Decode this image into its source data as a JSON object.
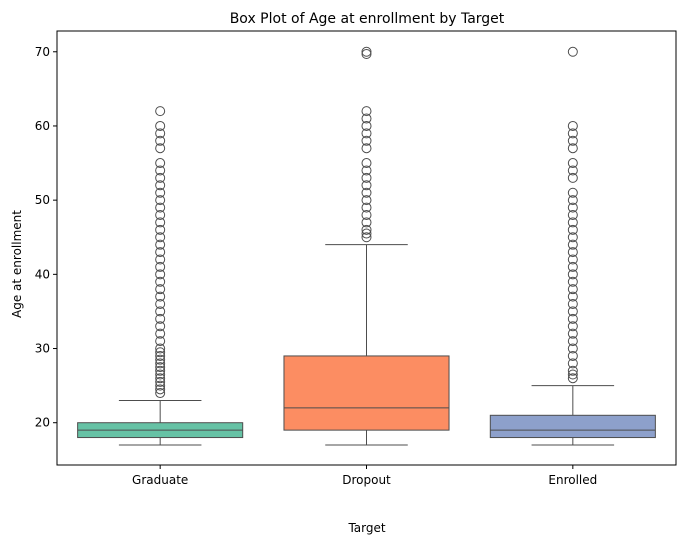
{
  "chart_data": {
    "type": "box",
    "title": "Box Plot of Age at enrollment by Target",
    "xlabel": "Target",
    "ylabel": "Age at enrollment",
    "ylim": [
      14.3,
      72.8
    ],
    "yticks": [
      20,
      30,
      40,
      50,
      60,
      70
    ],
    "grid": false,
    "categories": [
      "Graduate",
      "Dropout",
      "Enrolled"
    ],
    "colors": [
      "#66c2a5",
      "#fc8d62",
      "#8da0cb"
    ],
    "boxes": [
      {
        "category": "Graduate",
        "whisker_low": 17,
        "q1": 18,
        "median": 19,
        "q3": 20,
        "whisker_high": 23,
        "outliers": [
          24,
          24.5,
          25,
          25.5,
          26,
          26.5,
          27,
          27.5,
          28,
          28.5,
          29,
          29.5,
          30,
          31,
          32,
          33,
          34,
          35,
          36,
          37,
          38,
          39,
          40,
          41,
          42,
          43,
          44,
          45,
          46,
          47,
          48,
          49,
          50,
          51,
          52,
          53,
          54,
          55,
          57,
          58,
          59,
          60,
          62
        ]
      },
      {
        "category": "Dropout",
        "whisker_low": 17,
        "q1": 19,
        "median": 22,
        "q3": 29,
        "whisker_high": 44,
        "outliers": [
          45,
          45.5,
          46,
          47,
          48,
          49,
          50,
          51,
          52,
          53,
          54,
          55,
          57,
          58,
          59,
          60,
          61,
          62,
          69.7,
          70
        ]
      },
      {
        "category": "Enrolled",
        "whisker_low": 17,
        "q1": 18,
        "median": 19,
        "q3": 21,
        "whisker_high": 25,
        "outliers": [
          26,
          26.5,
          27,
          28,
          29,
          30,
          31,
          32,
          33,
          34,
          35,
          36,
          37,
          38,
          39,
          40,
          41,
          42,
          43,
          44,
          45,
          46,
          47,
          48,
          49,
          50,
          51,
          53,
          54,
          55,
          57,
          58,
          59,
          60,
          70
        ]
      }
    ]
  }
}
